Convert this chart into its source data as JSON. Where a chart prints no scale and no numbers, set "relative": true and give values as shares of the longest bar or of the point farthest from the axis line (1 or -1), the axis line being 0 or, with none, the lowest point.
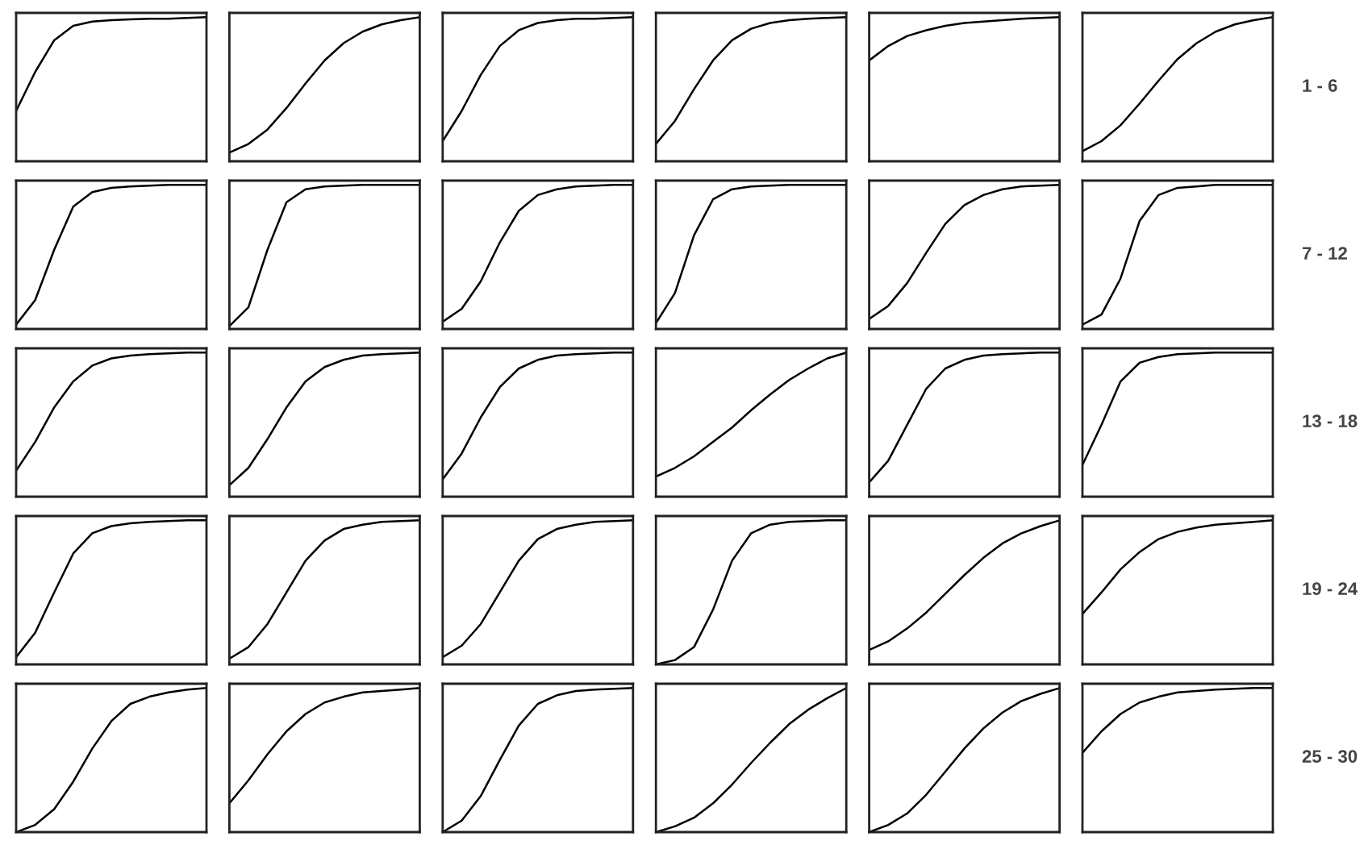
{
  "chart_data": [
    {
      "type": "line",
      "relative": true,
      "categories": [
        null,
        null,
        null,
        null,
        null,
        null,
        null,
        null,
        null,
        null,
        null
      ],
      "series": [
        {
          "color": "#000000",
          "values": [
            0.35,
            0.62,
            0.84,
            0.94,
            0.97,
            0.98,
            0.985,
            0.99,
            0.99,
            0.995,
            1
          ]
        }
      ]
    },
    {
      "type": "line",
      "relative": true,
      "categories": [
        null,
        null,
        null,
        null,
        null,
        null,
        null,
        null,
        null,
        null,
        null
      ],
      "series": [
        {
          "color": "#000000",
          "values": [
            0.06,
            0.12,
            0.22,
            0.37,
            0.54,
            0.7,
            0.82,
            0.9,
            0.95,
            0.98,
            1
          ]
        }
      ]
    },
    {
      "type": "line",
      "relative": true,
      "categories": [
        null,
        null,
        null,
        null,
        null,
        null,
        null,
        null,
        null,
        null,
        null
      ],
      "series": [
        {
          "color": "#000000",
          "values": [
            0.14,
            0.35,
            0.6,
            0.8,
            0.91,
            0.96,
            0.98,
            0.99,
            0.99,
            0.995,
            1
          ]
        }
      ]
    },
    {
      "type": "line",
      "relative": true,
      "categories": [
        null,
        null,
        null,
        null,
        null,
        null,
        null,
        null,
        null,
        null,
        null
      ],
      "series": [
        {
          "color": "#000000",
          "values": [
            0.12,
            0.28,
            0.5,
            0.7,
            0.84,
            0.92,
            0.96,
            0.98,
            0.99,
            0.995,
            1
          ]
        }
      ]
    },
    {
      "type": "line",
      "relative": true,
      "categories": [
        null,
        null,
        null,
        null,
        null,
        null,
        null,
        null,
        null,
        null,
        null
      ],
      "series": [
        {
          "color": "#000000",
          "values": [
            0.7,
            0.8,
            0.87,
            0.91,
            0.94,
            0.96,
            0.97,
            0.98,
            0.99,
            0.995,
            1
          ]
        }
      ]
    },
    {
      "type": "line",
      "relative": true,
      "categories": [
        null,
        null,
        null,
        null,
        null,
        null,
        null,
        null,
        null,
        null,
        null
      ],
      "series": [
        {
          "color": "#000000",
          "values": [
            0.07,
            0.14,
            0.25,
            0.4,
            0.56,
            0.71,
            0.82,
            0.9,
            0.95,
            0.98,
            1
          ]
        }
      ],
      "annotations": [
        "1 - 6"
      ]
    },
    {
      "type": "line",
      "relative": true,
      "categories": [
        null,
        null,
        null,
        null,
        null,
        null,
        null,
        null,
        null,
        null,
        null
      ],
      "series": [
        {
          "color": "#000000",
          "values": [
            0.03,
            0.2,
            0.55,
            0.85,
            0.95,
            0.98,
            0.99,
            0.995,
            1,
            1,
            1
          ]
        }
      ]
    },
    {
      "type": "line",
      "relative": true,
      "categories": [
        null,
        null,
        null,
        null,
        null,
        null,
        null,
        null,
        null,
        null,
        null
      ],
      "series": [
        {
          "color": "#000000",
          "values": [
            0.02,
            0.15,
            0.55,
            0.88,
            0.97,
            0.99,
            0.995,
            1,
            1,
            1,
            1
          ]
        }
      ]
    },
    {
      "type": "line",
      "relative": true,
      "categories": [
        null,
        null,
        null,
        null,
        null,
        null,
        null,
        null,
        null,
        null,
        null
      ],
      "series": [
        {
          "color": "#000000",
          "values": [
            0.05,
            0.14,
            0.33,
            0.6,
            0.82,
            0.93,
            0.97,
            0.99,
            0.995,
            1,
            1
          ]
        }
      ]
    },
    {
      "type": "line",
      "relative": true,
      "categories": [
        null,
        null,
        null,
        null,
        null,
        null,
        null,
        null,
        null,
        null,
        null
      ],
      "series": [
        {
          "color": "#000000",
          "values": [
            0.04,
            0.25,
            0.65,
            0.9,
            0.97,
            0.99,
            0.995,
            1,
            1,
            1,
            1
          ]
        }
      ]
    },
    {
      "type": "line",
      "relative": true,
      "categories": [
        null,
        null,
        null,
        null,
        null,
        null,
        null,
        null,
        null,
        null,
        null
      ],
      "series": [
        {
          "color": "#000000",
          "values": [
            0.07,
            0.16,
            0.32,
            0.53,
            0.73,
            0.86,
            0.93,
            0.97,
            0.99,
            0.995,
            1
          ]
        }
      ]
    },
    {
      "type": "line",
      "relative": true,
      "categories": [
        null,
        null,
        null,
        null,
        null,
        null,
        null,
        null,
        null,
        null,
        null
      ],
      "series": [
        {
          "color": "#000000",
          "values": [
            0.03,
            0.1,
            0.35,
            0.75,
            0.93,
            0.98,
            0.99,
            1,
            1,
            1,
            1
          ]
        }
      ],
      "annotations": [
        "7 - 12"
      ]
    },
    {
      "type": "line",
      "relative": true,
      "categories": [
        null,
        null,
        null,
        null,
        null,
        null,
        null,
        null,
        null,
        null,
        null
      ],
      "series": [
        {
          "color": "#000000",
          "values": [
            0.18,
            0.38,
            0.62,
            0.8,
            0.91,
            0.96,
            0.98,
            0.99,
            0.995,
            1,
            1
          ]
        }
      ]
    },
    {
      "type": "line",
      "relative": true,
      "categories": [
        null,
        null,
        null,
        null,
        null,
        null,
        null,
        null,
        null,
        null,
        null
      ],
      "series": [
        {
          "color": "#000000",
          "values": [
            0.08,
            0.2,
            0.4,
            0.62,
            0.8,
            0.9,
            0.95,
            0.98,
            0.99,
            0.995,
            1
          ]
        }
      ]
    },
    {
      "type": "line",
      "relative": true,
      "categories": [
        null,
        null,
        null,
        null,
        null,
        null,
        null,
        null,
        null,
        null,
        null
      ],
      "series": [
        {
          "color": "#000000",
          "values": [
            0.12,
            0.3,
            0.55,
            0.76,
            0.89,
            0.95,
            0.98,
            0.99,
            0.995,
            1,
            1
          ]
        }
      ]
    },
    {
      "type": "line",
      "relative": true,
      "categories": [
        null,
        null,
        null,
        null,
        null,
        null,
        null,
        null,
        null,
        null,
        null
      ],
      "series": [
        {
          "color": "#000000",
          "values": [
            0.14,
            0.2,
            0.28,
            0.38,
            0.48,
            0.6,
            0.71,
            0.81,
            0.89,
            0.96,
            1
          ]
        }
      ]
    },
    {
      "type": "line",
      "relative": true,
      "categories": [
        null,
        null,
        null,
        null,
        null,
        null,
        null,
        null,
        null,
        null,
        null
      ],
      "series": [
        {
          "color": "#000000",
          "values": [
            0.1,
            0.25,
            0.5,
            0.75,
            0.89,
            0.95,
            0.98,
            0.99,
            0.995,
            1,
            1
          ]
        }
      ]
    },
    {
      "type": "line",
      "relative": true,
      "categories": [
        null,
        null,
        null,
        null,
        null,
        null,
        null,
        null,
        null,
        null,
        null
      ],
      "series": [
        {
          "color": "#000000",
          "values": [
            0.22,
            0.5,
            0.8,
            0.93,
            0.97,
            0.99,
            0.995,
            1,
            1,
            1,
            1
          ]
        }
      ],
      "annotations": [
        "13 - 18"
      ]
    },
    {
      "type": "line",
      "relative": true,
      "categories": [
        null,
        null,
        null,
        null,
        null,
        null,
        null,
        null,
        null,
        null,
        null
      ],
      "series": [
        {
          "color": "#000000",
          "values": [
            0.05,
            0.22,
            0.5,
            0.77,
            0.91,
            0.96,
            0.98,
            0.99,
            0.995,
            1,
            1
          ]
        }
      ]
    },
    {
      "type": "line",
      "relative": true,
      "categories": [
        null,
        null,
        null,
        null,
        null,
        null,
        null,
        null,
        null,
        null,
        null
      ],
      "series": [
        {
          "color": "#000000",
          "values": [
            0.04,
            0.12,
            0.28,
            0.5,
            0.72,
            0.86,
            0.94,
            0.97,
            0.99,
            0.995,
            1
          ]
        }
      ]
    },
    {
      "type": "line",
      "relative": true,
      "categories": [
        null,
        null,
        null,
        null,
        null,
        null,
        null,
        null,
        null,
        null,
        null
      ],
      "series": [
        {
          "color": "#000000",
          "values": [
            0.05,
            0.13,
            0.28,
            0.5,
            0.72,
            0.87,
            0.94,
            0.97,
            0.99,
            0.995,
            1
          ]
        }
      ]
    },
    {
      "type": "line",
      "relative": true,
      "categories": [
        null,
        null,
        null,
        null,
        null,
        null,
        null,
        null,
        null,
        null,
        null
      ],
      "series": [
        {
          "color": "#000000",
          "values": [
            0.0,
            0.03,
            0.12,
            0.38,
            0.72,
            0.91,
            0.97,
            0.99,
            0.995,
            1,
            1
          ]
        }
      ]
    },
    {
      "type": "line",
      "relative": true,
      "categories": [
        null,
        null,
        null,
        null,
        null,
        null,
        null,
        null,
        null,
        null,
        null
      ],
      "series": [
        {
          "color": "#000000",
          "values": [
            0.1,
            0.16,
            0.25,
            0.36,
            0.49,
            0.62,
            0.74,
            0.84,
            0.91,
            0.96,
            1
          ]
        }
      ]
    },
    {
      "type": "line",
      "relative": true,
      "categories": [
        null,
        null,
        null,
        null,
        null,
        null,
        null,
        null,
        null,
        null,
        null
      ],
      "series": [
        {
          "color": "#000000",
          "values": [
            0.35,
            0.5,
            0.66,
            0.78,
            0.87,
            0.92,
            0.95,
            0.97,
            0.98,
            0.99,
            1
          ]
        }
      ],
      "annotations": [
        "19 - 24"
      ]
    },
    {
      "type": "line",
      "relative": true,
      "categories": [
        null,
        null,
        null,
        null,
        null,
        null,
        null,
        null,
        null,
        null,
        null
      ],
      "series": [
        {
          "color": "#000000",
          "values": [
            0.0,
            0.05,
            0.16,
            0.35,
            0.58,
            0.77,
            0.89,
            0.94,
            0.97,
            0.99,
            1
          ]
        }
      ]
    },
    {
      "type": "line",
      "relative": true,
      "categories": [
        null,
        null,
        null,
        null,
        null,
        null,
        null,
        null,
        null,
        null,
        null
      ],
      "series": [
        {
          "color": "#000000",
          "values": [
            0.2,
            0.36,
            0.54,
            0.7,
            0.82,
            0.9,
            0.94,
            0.97,
            0.98,
            0.99,
            1
          ]
        }
      ]
    },
    {
      "type": "line",
      "relative": true,
      "categories": [
        null,
        null,
        null,
        null,
        null,
        null,
        null,
        null,
        null,
        null,
        null
      ],
      "series": [
        {
          "color": "#000000",
          "values": [
            0.0,
            0.08,
            0.25,
            0.5,
            0.74,
            0.89,
            0.95,
            0.98,
            0.99,
            0.995,
            1
          ]
        }
      ]
    },
    {
      "type": "line",
      "relative": true,
      "categories": [
        null,
        null,
        null,
        null,
        null,
        null,
        null,
        null,
        null,
        null,
        null
      ],
      "series": [
        {
          "color": "#000000",
          "values": [
            0.0,
            0.04,
            0.1,
            0.2,
            0.33,
            0.48,
            0.62,
            0.75,
            0.85,
            0.93,
            1
          ]
        }
      ]
    },
    {
      "type": "line",
      "relative": true,
      "categories": [
        null,
        null,
        null,
        null,
        null,
        null,
        null,
        null,
        null,
        null,
        null
      ],
      "series": [
        {
          "color": "#000000",
          "values": [
            0.0,
            0.05,
            0.13,
            0.26,
            0.42,
            0.58,
            0.72,
            0.83,
            0.91,
            0.96,
            1
          ]
        }
      ]
    },
    {
      "type": "line",
      "relative": true,
      "categories": [
        null,
        null,
        null,
        null,
        null,
        null,
        null,
        null,
        null,
        null,
        null
      ],
      "series": [
        {
          "color": "#000000",
          "values": [
            0.55,
            0.7,
            0.82,
            0.9,
            0.94,
            0.97,
            0.98,
            0.99,
            0.995,
            1,
            1
          ]
        }
      ],
      "annotations": [
        "25 - 30"
      ]
    }
  ]
}
